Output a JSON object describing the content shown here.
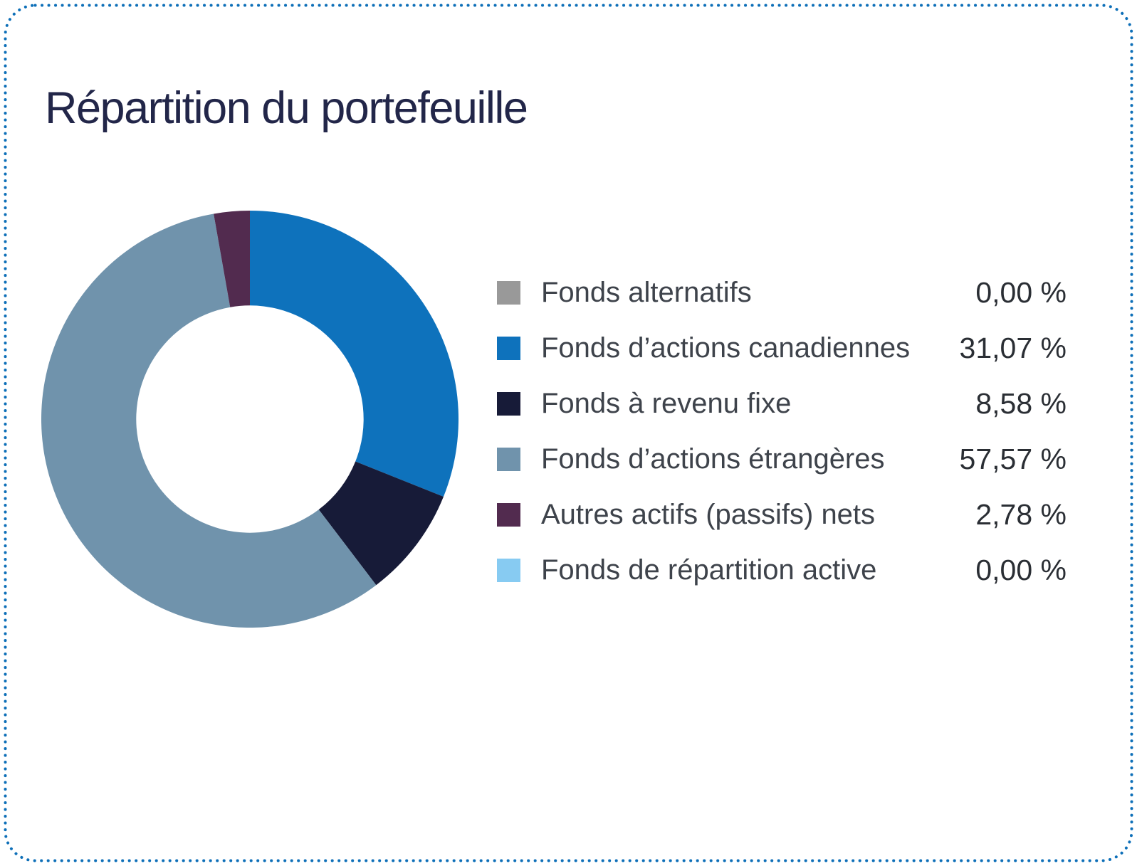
{
  "theme": {
    "card_background": "#ffffff",
    "border_dot_color": "#0d6fb8",
    "title_color": "#222649",
    "label_color": "#3e434b",
    "value_color": "#2a2e34"
  },
  "chart_data": {
    "type": "pie",
    "title": "Répartition du portefeuille",
    "donut": true,
    "start_angle_deg": -90,
    "direction": "clockwise",
    "inner_radius_ratio": 0.545,
    "legend_position": "right",
    "value_suffix": " %",
    "series": [
      {
        "label": "Fonds alternatifs",
        "value": 0.0,
        "display": "0,00 %",
        "color": "#999999"
      },
      {
        "label": "Fonds d’actions canadiennes",
        "value": 31.07,
        "display": "31,07 %",
        "color": "#0e72bc"
      },
      {
        "label": "Fonds à revenu fixe",
        "value": 8.58,
        "display": "8,58 %",
        "color": "#171b38"
      },
      {
        "label": "Fonds d’actions étrangères",
        "value": 57.57,
        "display": "57,57 %",
        "color": "#7093ac"
      },
      {
        "label": "Autres actifs (passifs) nets",
        "value": 2.78,
        "display": "2,78 %",
        "color": "#522b4f"
      },
      {
        "label": "Fonds de répartition active",
        "value": 0.0,
        "display": "0,00 %",
        "color": "#87cbf2"
      }
    ]
  }
}
